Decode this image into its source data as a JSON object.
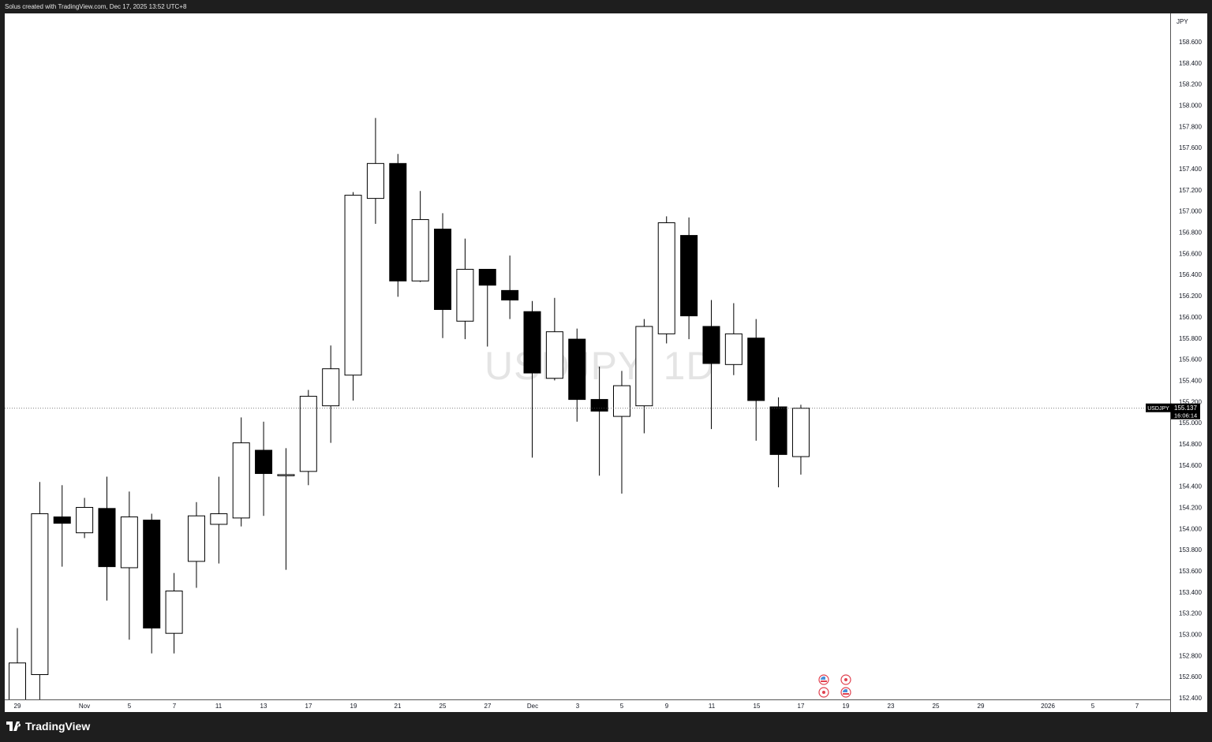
{
  "header": {
    "caption": "Solus created with TradingView.com, Dec 17, 2025 13:52 UTC+8"
  },
  "footer": {
    "logo_text": "TradingView"
  },
  "watermark": "USDJPY, 1D",
  "price_axis": {
    "currency": "JPY"
  },
  "last_price": {
    "symbol": "USDJPY",
    "price": "155.137",
    "countdown": "16:06:14"
  },
  "colors": {
    "bull_body": "#ffffff",
    "bear_body": "#000000",
    "wick": "#000000",
    "frame": "#1e1e1e",
    "event": "#e0414f"
  },
  "events": [
    {
      "date": "2025-12-18",
      "icons": [
        "us-flag-icon",
        "economic-event-icon"
      ]
    },
    {
      "date": "2025-12-19",
      "icons": [
        "economic-event-icon",
        "us-flag-icon"
      ]
    }
  ],
  "chart_data": {
    "type": "candlestick",
    "title": "",
    "ylim": [
      152.4,
      158.6
    ],
    "grid": false,
    "yticks": [
      "158.600",
      "158.400",
      "158.200",
      "158.000",
      "157.800",
      "157.600",
      "157.400",
      "157.200",
      "157.000",
      "156.800",
      "156.600",
      "156.400",
      "156.200",
      "156.000",
      "155.800",
      "155.600",
      "155.400",
      "155.200",
      "155.000",
      "154.800",
      "154.600",
      "154.400",
      "154.200",
      "154.000",
      "153.800",
      "153.600",
      "153.400",
      "153.200",
      "153.000",
      "152.800",
      "152.600",
      "152.400"
    ],
    "xticks": [
      "29",
      "Nov",
      "5",
      "7",
      "11",
      "13",
      "17",
      "19",
      "21",
      "25",
      "27",
      "Dec",
      "3",
      "5",
      "9",
      "11",
      "15",
      "17",
      "19",
      "23",
      "25",
      "29",
      "2026",
      "5",
      "7"
    ],
    "candles": [
      {
        "date": "2025-10-29",
        "o": 152.36,
        "h": 153.06,
        "l": 152.3,
        "c": 152.73
      },
      {
        "date": "2025-10-30",
        "o": 152.62,
        "h": 154.44,
        "l": 152.35,
        "c": 154.14
      },
      {
        "date": "2025-10-31",
        "o": 154.11,
        "h": 154.41,
        "l": 153.64,
        "c": 154.05
      },
      {
        "date": "2025-11-03",
        "o": 153.96,
        "h": 154.29,
        "l": 153.91,
        "c": 154.2
      },
      {
        "date": "2025-11-04",
        "o": 154.19,
        "h": 154.49,
        "l": 153.32,
        "c": 153.64
      },
      {
        "date": "2025-11-05",
        "o": 153.63,
        "h": 154.35,
        "l": 152.95,
        "c": 154.11
      },
      {
        "date": "2025-11-06",
        "o": 154.08,
        "h": 154.14,
        "l": 152.82,
        "c": 153.06
      },
      {
        "date": "2025-11-07",
        "o": 153.01,
        "h": 153.58,
        "l": 152.82,
        "c": 153.41
      },
      {
        "date": "2025-11-10",
        "o": 153.69,
        "h": 154.25,
        "l": 153.44,
        "c": 154.12
      },
      {
        "date": "2025-11-11",
        "o": 154.04,
        "h": 154.49,
        "l": 153.67,
        "c": 154.14
      },
      {
        "date": "2025-11-12",
        "o": 154.1,
        "h": 155.05,
        "l": 154.02,
        "c": 154.81
      },
      {
        "date": "2025-11-13",
        "o": 154.74,
        "h": 155.01,
        "l": 154.12,
        "c": 154.52
      },
      {
        "date": "2025-11-14",
        "o": 154.51,
        "h": 154.76,
        "l": 153.61,
        "c": 154.51
      },
      {
        "date": "2025-11-17",
        "o": 154.54,
        "h": 155.31,
        "l": 154.41,
        "c": 155.25
      },
      {
        "date": "2025-11-18",
        "o": 155.16,
        "h": 155.73,
        "l": 154.81,
        "c": 155.51
      },
      {
        "date": "2025-11-19",
        "o": 155.45,
        "h": 157.18,
        "l": 155.21,
        "c": 157.15
      },
      {
        "date": "2025-11-20",
        "o": 157.12,
        "h": 157.88,
        "l": 156.88,
        "c": 157.45
      },
      {
        "date": "2025-11-21",
        "o": 157.45,
        "h": 157.54,
        "l": 156.19,
        "c": 156.34
      },
      {
        "date": "2025-11-24",
        "o": 156.34,
        "h": 157.19,
        "l": 156.33,
        "c": 156.92
      },
      {
        "date": "2025-11-25",
        "o": 156.83,
        "h": 156.98,
        "l": 155.8,
        "c": 156.07
      },
      {
        "date": "2025-11-26",
        "o": 155.96,
        "h": 156.74,
        "l": 155.79,
        "c": 156.45
      },
      {
        "date": "2025-11-27",
        "o": 156.45,
        "h": 156.45,
        "l": 155.72,
        "c": 156.3
      },
      {
        "date": "2025-11-28",
        "o": 156.25,
        "h": 156.58,
        "l": 155.98,
        "c": 156.16
      },
      {
        "date": "2025-12-01",
        "o": 156.05,
        "h": 156.15,
        "l": 154.67,
        "c": 155.47
      },
      {
        "date": "2025-12-02",
        "o": 155.42,
        "h": 156.18,
        "l": 155.4,
        "c": 155.86
      },
      {
        "date": "2025-12-03",
        "o": 155.79,
        "h": 155.89,
        "l": 155.01,
        "c": 155.22
      },
      {
        "date": "2025-12-04",
        "o": 155.22,
        "h": 155.53,
        "l": 154.5,
        "c": 155.11
      },
      {
        "date": "2025-12-05",
        "o": 155.06,
        "h": 155.49,
        "l": 154.33,
        "c": 155.35
      },
      {
        "date": "2025-12-08",
        "o": 155.16,
        "h": 155.98,
        "l": 154.9,
        "c": 155.91
      },
      {
        "date": "2025-12-09",
        "o": 155.84,
        "h": 156.95,
        "l": 155.75,
        "c": 156.89
      },
      {
        "date": "2025-12-10",
        "o": 156.77,
        "h": 156.94,
        "l": 155.79,
        "c": 156.01
      },
      {
        "date": "2025-12-11",
        "o": 155.91,
        "h": 156.16,
        "l": 154.94,
        "c": 155.56
      },
      {
        "date": "2025-12-12",
        "o": 155.55,
        "h": 156.13,
        "l": 155.45,
        "c": 155.84
      },
      {
        "date": "2025-12-15",
        "o": 155.8,
        "h": 155.98,
        "l": 154.83,
        "c": 155.21
      },
      {
        "date": "2025-12-16",
        "o": 155.15,
        "h": 155.24,
        "l": 154.39,
        "c": 154.7
      },
      {
        "date": "2025-12-17",
        "o": 154.68,
        "h": 155.17,
        "l": 154.51,
        "c": 155.137
      }
    ]
  }
}
